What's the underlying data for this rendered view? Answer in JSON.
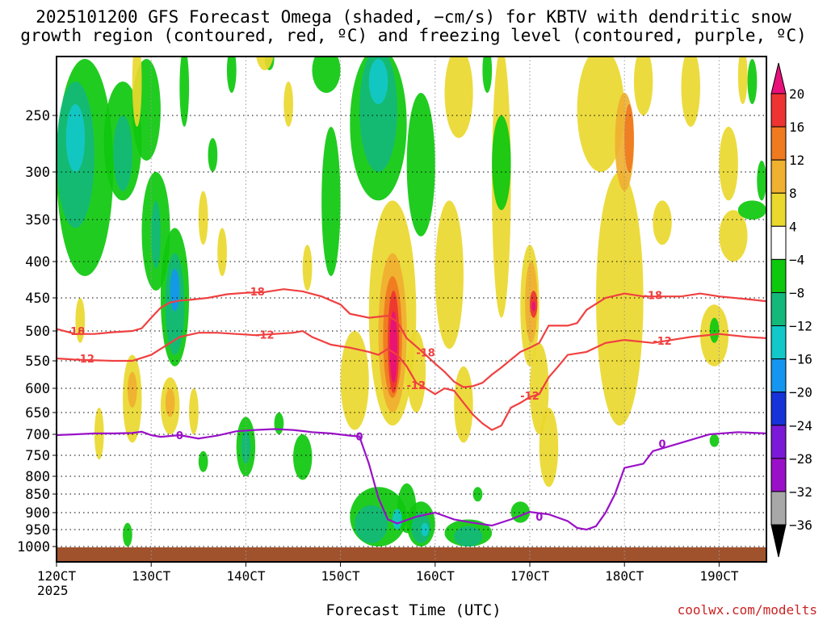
{
  "chart_data": {
    "type": "heatmap",
    "title_line1": "2025101200 GFS Forecast Omega (shaded, −cm/s) for KBTV with dendritic snow",
    "title_line2": "growth region (contoured, red, ºC) and freezing level (contoured, purple, ºC)",
    "xlabel": "Forecast Time (UTC)",
    "year_label": "2025",
    "credit": "coolwx.com/modelts",
    "x_range": [
      120,
      195
    ],
    "x_ticks": [
      {
        "v": 120,
        "label": "120CT"
      },
      {
        "v": 130,
        "label": "130CT"
      },
      {
        "v": 140,
        "label": "140CT"
      },
      {
        "v": 150,
        "label": "150CT"
      },
      {
        "v": 160,
        "label": "160CT"
      },
      {
        "v": 170,
        "label": "170CT"
      },
      {
        "v": 180,
        "label": "180CT"
      },
      {
        "v": 190,
        "label": "190CT"
      }
    ],
    "y_range_hpa": [
      1030,
      190
    ],
    "y_ticks": [
      250,
      300,
      350,
      400,
      450,
      500,
      550,
      600,
      650,
      700,
      750,
      800,
      850,
      900,
      950,
      1000
    ],
    "colorbar": {
      "labels": [
        "20",
        "16",
        "12",
        "8",
        "4",
        "−4",
        "−8",
        "−12",
        "−16",
        "−20",
        "−24",
        "−28",
        "−32",
        "−36"
      ],
      "colors": [
        "#e8107a",
        "#ee3333",
        "#f07a20",
        "#f0b030",
        "#ead82e",
        "#ffffff",
        "#0ec80e",
        "#14b87a",
        "#12c8c8",
        "#1496f0",
        "#1632d8",
        "#7a1ad8",
        "#9a10c8",
        "#a8a8a8",
        "#000000"
      ]
    },
    "series": [
      {
        "name": "-18 C isotherm",
        "color": "#f04040",
        "label": "-18",
        "points": [
          [
            120,
            497
          ],
          [
            122,
            505
          ],
          [
            124,
            505
          ],
          [
            126,
            502
          ],
          [
            128,
            500
          ],
          [
            129,
            496
          ],
          [
            130,
            480
          ],
          [
            131,
            465
          ],
          [
            132,
            457
          ],
          [
            133,
            454
          ],
          [
            134,
            453
          ],
          [
            136,
            450
          ],
          [
            138,
            445
          ],
          [
            140,
            443
          ],
          [
            142,
            442
          ],
          [
            144,
            438
          ],
          [
            146,
            441
          ],
          [
            148,
            448
          ],
          [
            150,
            460
          ],
          [
            151,
            474
          ],
          [
            153,
            480
          ],
          [
            155,
            477
          ],
          [
            156,
            486
          ],
          [
            157,
            512
          ],
          [
            158,
            526
          ],
          [
            159,
            540
          ],
          [
            160,
            555
          ],
          [
            161,
            570
          ],
          [
            162,
            588
          ],
          [
            163,
            598
          ],
          [
            164,
            596
          ],
          [
            165,
            590
          ],
          [
            166,
            575
          ],
          [
            167,
            562
          ],
          [
            168,
            548
          ],
          [
            169,
            535
          ],
          [
            170,
            528
          ],
          [
            171,
            520
          ],
          [
            172,
            492
          ],
          [
            174,
            492
          ],
          [
            175,
            488
          ],
          [
            176,
            468
          ],
          [
            178,
            450
          ],
          [
            180,
            444
          ],
          [
            182,
            448
          ],
          [
            186,
            448
          ],
          [
            188,
            444
          ],
          [
            190,
            448
          ],
          [
            193,
            452
          ],
          [
            195,
            455
          ]
        ],
        "label_points": [
          [
            122,
            500
          ],
          [
            141,
            441
          ],
          [
            159,
            536
          ],
          [
            183,
            446
          ]
        ]
      },
      {
        "name": "-12 C isotherm",
        "color": "#f04040",
        "label": "-12",
        "points": [
          [
            120,
            546
          ],
          [
            122,
            548
          ],
          [
            126,
            550
          ],
          [
            128,
            550
          ],
          [
            129,
            545
          ],
          [
            130,
            540
          ],
          [
            131,
            530
          ],
          [
            133,
            510
          ],
          [
            135,
            503
          ],
          [
            137,
            503
          ],
          [
            139,
            505
          ],
          [
            141,
            507
          ],
          [
            143,
            505
          ],
          [
            145,
            503
          ],
          [
            146,
            500
          ],
          [
            147,
            510
          ],
          [
            149,
            523
          ],
          [
            151,
            528
          ],
          [
            153,
            535
          ],
          [
            154,
            540
          ],
          [
            155,
            530
          ],
          [
            156,
            540
          ],
          [
            157,
            560
          ],
          [
            158,
            590
          ],
          [
            159,
            600
          ],
          [
            160,
            612
          ],
          [
            161,
            600
          ],
          [
            162,
            605
          ],
          [
            163,
            630
          ],
          [
            164,
            655
          ],
          [
            165,
            675
          ],
          [
            166,
            690
          ],
          [
            167,
            680
          ],
          [
            168,
            640
          ],
          [
            169,
            630
          ],
          [
            170,
            618
          ],
          [
            171,
            612
          ],
          [
            172,
            580
          ],
          [
            173,
            560
          ],
          [
            174,
            540
          ],
          [
            176,
            535
          ],
          [
            178,
            520
          ],
          [
            180,
            515
          ],
          [
            183,
            520
          ],
          [
            185,
            515
          ],
          [
            187,
            510
          ],
          [
            190,
            505
          ],
          [
            193,
            510
          ],
          [
            195,
            512
          ]
        ],
        "label_points": [
          [
            123,
            546
          ],
          [
            142,
            506
          ],
          [
            158,
            594
          ],
          [
            170,
            615
          ],
          [
            184,
            516
          ]
        ]
      },
      {
        "name": "0 C freezing level",
        "color": "#9a10c8",
        "label": "0",
        "points": [
          [
            120,
            702
          ],
          [
            122,
            700
          ],
          [
            124,
            698
          ],
          [
            126,
            698
          ],
          [
            128,
            697
          ],
          [
            129,
            694
          ],
          [
            130,
            702
          ],
          [
            131,
            706
          ],
          [
            133,
            702
          ],
          [
            135,
            710
          ],
          [
            137,
            703
          ],
          [
            139,
            693
          ],
          [
            141,
            690
          ],
          [
            143,
            688
          ],
          [
            145,
            690
          ],
          [
            147,
            695
          ],
          [
            149,
            698
          ],
          [
            151,
            703
          ],
          [
            152,
            705
          ],
          [
            153,
            770
          ],
          [
            154,
            860
          ],
          [
            155,
            920
          ],
          [
            156,
            932
          ],
          [
            157,
            922
          ],
          [
            158,
            912
          ],
          [
            160,
            900
          ],
          [
            162,
            920
          ],
          [
            164,
            930
          ],
          [
            166,
            938
          ],
          [
            168,
            920
          ],
          [
            170,
            898
          ],
          [
            172,
            905
          ],
          [
            174,
            925
          ],
          [
            175,
            945
          ],
          [
            176,
            950
          ],
          [
            177,
            940
          ],
          [
            178,
            900
          ],
          [
            179,
            850
          ],
          [
            180,
            780
          ],
          [
            182,
            770
          ],
          [
            183,
            740
          ],
          [
            186,
            720
          ],
          [
            189,
            700
          ],
          [
            192,
            695
          ],
          [
            195,
            698
          ]
        ],
        "label_points": [
          [
            133,
            702
          ],
          [
            152,
            705
          ],
          [
            171,
            912
          ],
          [
            184,
            722
          ]
        ]
      }
    ]
  }
}
